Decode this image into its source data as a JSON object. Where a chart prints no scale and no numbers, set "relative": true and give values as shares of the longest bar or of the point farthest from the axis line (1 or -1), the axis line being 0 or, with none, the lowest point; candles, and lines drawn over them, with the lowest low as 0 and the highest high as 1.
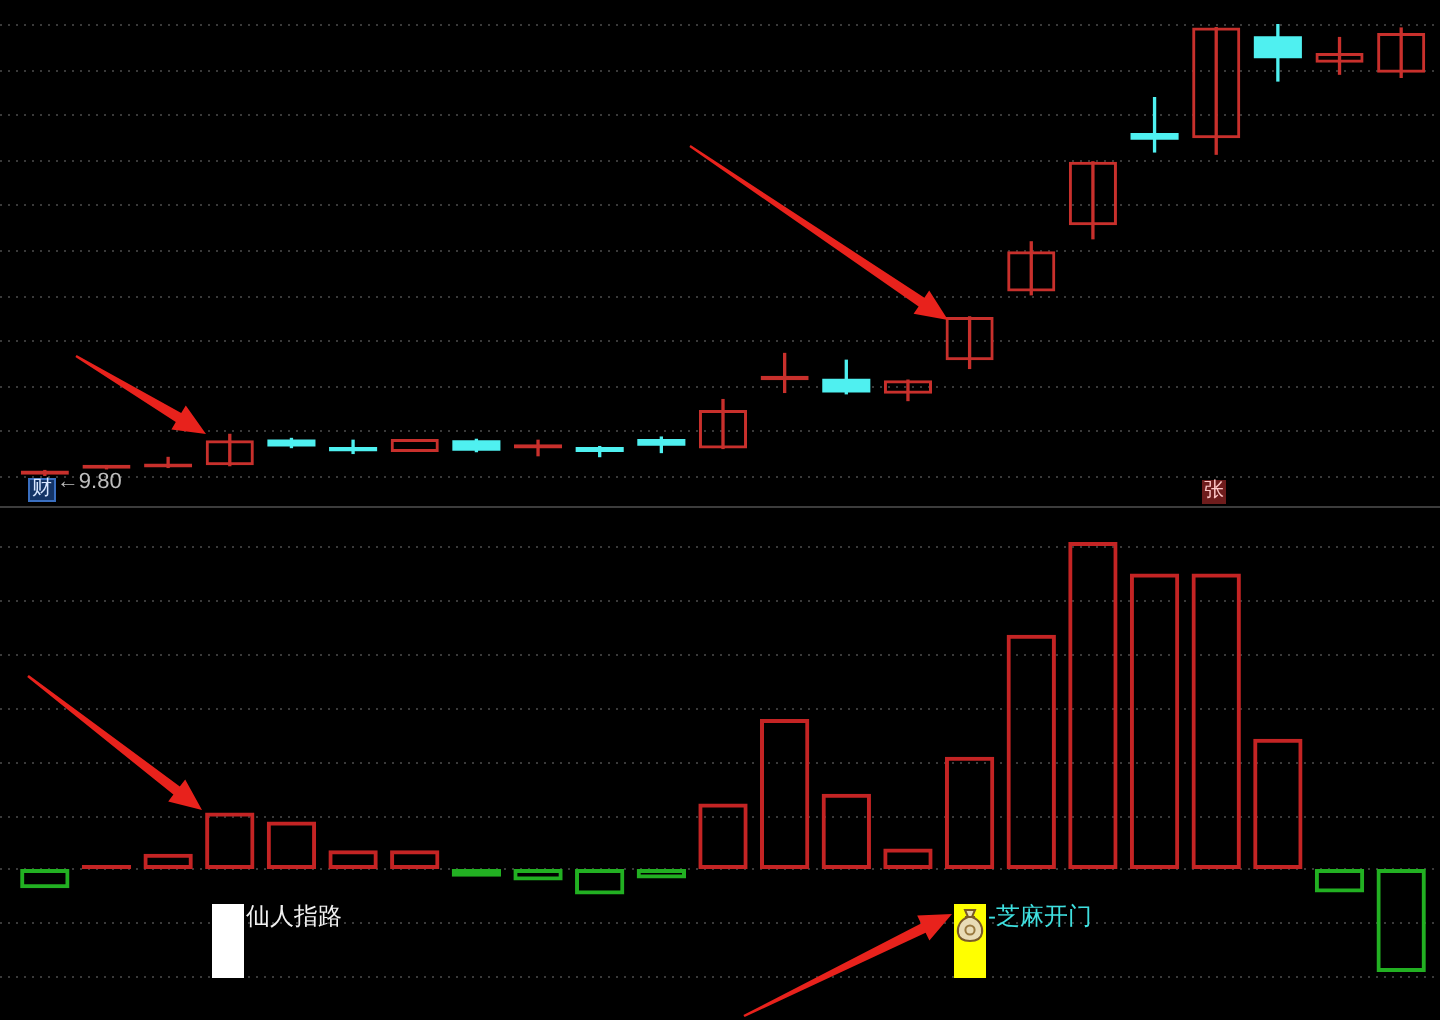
{
  "chart_data": [
    {
      "type": "candlestick",
      "relative": true,
      "grid": "y",
      "categories": [
        null,
        null,
        null,
        null,
        null,
        null,
        null,
        null,
        null,
        null,
        null,
        null,
        null,
        null,
        null,
        null,
        null,
        null,
        null,
        null,
        null,
        null,
        null
      ],
      "ohlc": [
        [
          0.003,
          0.012,
          0,
          0.012
        ],
        [
          0.016,
          0.023,
          0.016,
          0.021
        ],
        [
          0.019,
          0.041,
          0.019,
          0.025
        ],
        [
          0.024,
          0.092,
          0.023,
          0.079
        ],
        [
          0.081,
          0.083,
          0.063,
          0.065
        ],
        [
          0.064,
          0.079,
          0.05,
          0.055
        ],
        [
          0.053,
          0.082,
          0.053,
          0.082
        ],
        [
          0.079,
          0.081,
          0.054,
          0.056
        ],
        [
          0.061,
          0.079,
          0.045,
          0.07
        ],
        [
          0.064,
          0.065,
          0.043,
          0.053
        ],
        [
          0.082,
          0.086,
          0.052,
          0.067
        ],
        [
          0.061,
          0.169,
          0.061,
          0.146
        ],
        [
          0.212,
          0.271,
          0.185,
          0.222
        ],
        [
          0.215,
          0.256,
          0.182,
          0.185
        ],
        [
          0.182,
          0.212,
          0.167,
          0.212
        ],
        [
          0.256,
          0.352,
          0.238,
          0.352
        ],
        [
          0.408,
          0.518,
          0.401,
          0.497
        ],
        [
          0.555,
          0.695,
          0.525,
          0.695
        ],
        [
          0.759,
          0.837,
          0.717,
          0.744
        ],
        [
          0.747,
          0.992,
          0.712,
          0.992
        ],
        [
          0.973,
          1,
          0.874,
          0.924
        ],
        [
          0.914,
          0.97,
          0.889,
          0.936
        ],
        [
          0.892,
          0.991,
          0.882,
          0.98
        ]
      ],
      "colors": [
        "#c8302c",
        "#c8302c",
        "#c8302c",
        "#c8302c",
        "#4ff0f0",
        "#4ff0f0",
        "#c8302c",
        "#4ff0f0",
        "#c8302c",
        "#4ff0f0",
        "#4ff0f0",
        "#c8302c",
        "#c8302c",
        "#4ff0f0",
        "#c8302c",
        "#c8302c",
        "#c8302c",
        "#c8302c",
        "#4ff0f0",
        "#c8302c",
        "#4ff0f0",
        "#c8302c",
        "#c8302c"
      ],
      "annotations": [
        {
          "text": "←9.80",
          "y": 0
        },
        "财",
        "张"
      ]
    },
    {
      "type": "bar",
      "relative": true,
      "grid": "y",
      "categories": [
        null,
        null,
        null,
        null,
        null,
        null,
        null,
        null,
        null,
        null,
        null,
        null,
        null,
        null,
        null,
        null,
        null,
        null,
        null,
        null,
        null,
        null,
        null
      ],
      "values": [
        -0.059,
        0.012,
        0.047,
        0.173,
        0.145,
        0.057,
        0.057,
        -0.024,
        -0.035,
        -0.078,
        -0.029,
        0.2,
        0.459,
        0.23,
        0.063,
        0.343,
        0.716,
        1,
        0.904,
        0.904,
        0.398,
        -0.072,
        -0.315
      ],
      "colors": [
        "#22b022",
        "#c42424",
        "#c42424",
        "#c42424",
        "#c42424",
        "#c42424",
        "#c42424",
        "#22b022",
        "#22b022",
        "#22b022",
        "#22b022",
        "#c42424",
        "#c42424",
        "#c42424",
        "#c42424",
        "#c42424",
        "#c42424",
        "#c42424",
        "#c42424",
        "#c42424",
        "#c42424",
        "#22b022",
        "#22b022"
      ],
      "annotations": [
        "仙人指路",
        "-芝麻开门"
      ]
    }
  ]
}
